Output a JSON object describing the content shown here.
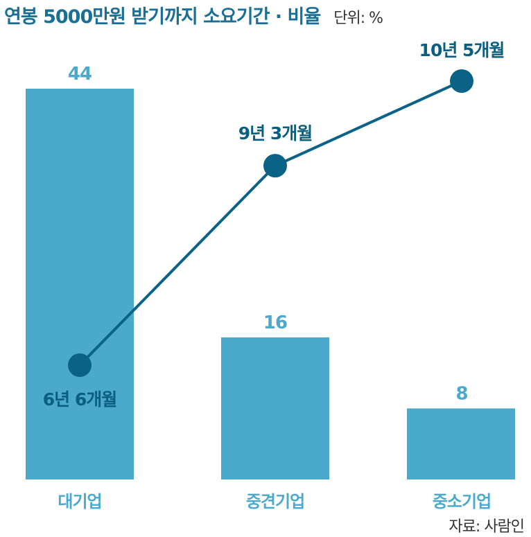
{
  "header": {
    "title": "연봉 5000만원 받기까지 소요기간 · 비율",
    "unit": "단위: %"
  },
  "source": "자료: 사람인",
  "colors": {
    "bar": "#4aa9cd",
    "bar_label": "#4aa9cd",
    "line": "#0a6387",
    "point": "#0a6387",
    "point_label": "#0a5e80",
    "title": "#1a6f95",
    "baseline": "#d9d9d9"
  },
  "chart_data": {
    "type": "bar",
    "title": "연봉 5000만원 받기까지 소요기간 · 비율",
    "unit": "%",
    "categories": [
      "대기업",
      "중견기업",
      "중소기업"
    ],
    "series": [
      {
        "type": "bar",
        "values": [
          44,
          16,
          8
        ],
        "value_labels": [
          "44",
          "16",
          "8"
        ]
      },
      {
        "type": "line",
        "values": [
          6.5,
          9.25,
          10.4167
        ],
        "value_labels": [
          "6년 6개월",
          "9년 3개월",
          "10년 5개월"
        ]
      }
    ]
  }
}
